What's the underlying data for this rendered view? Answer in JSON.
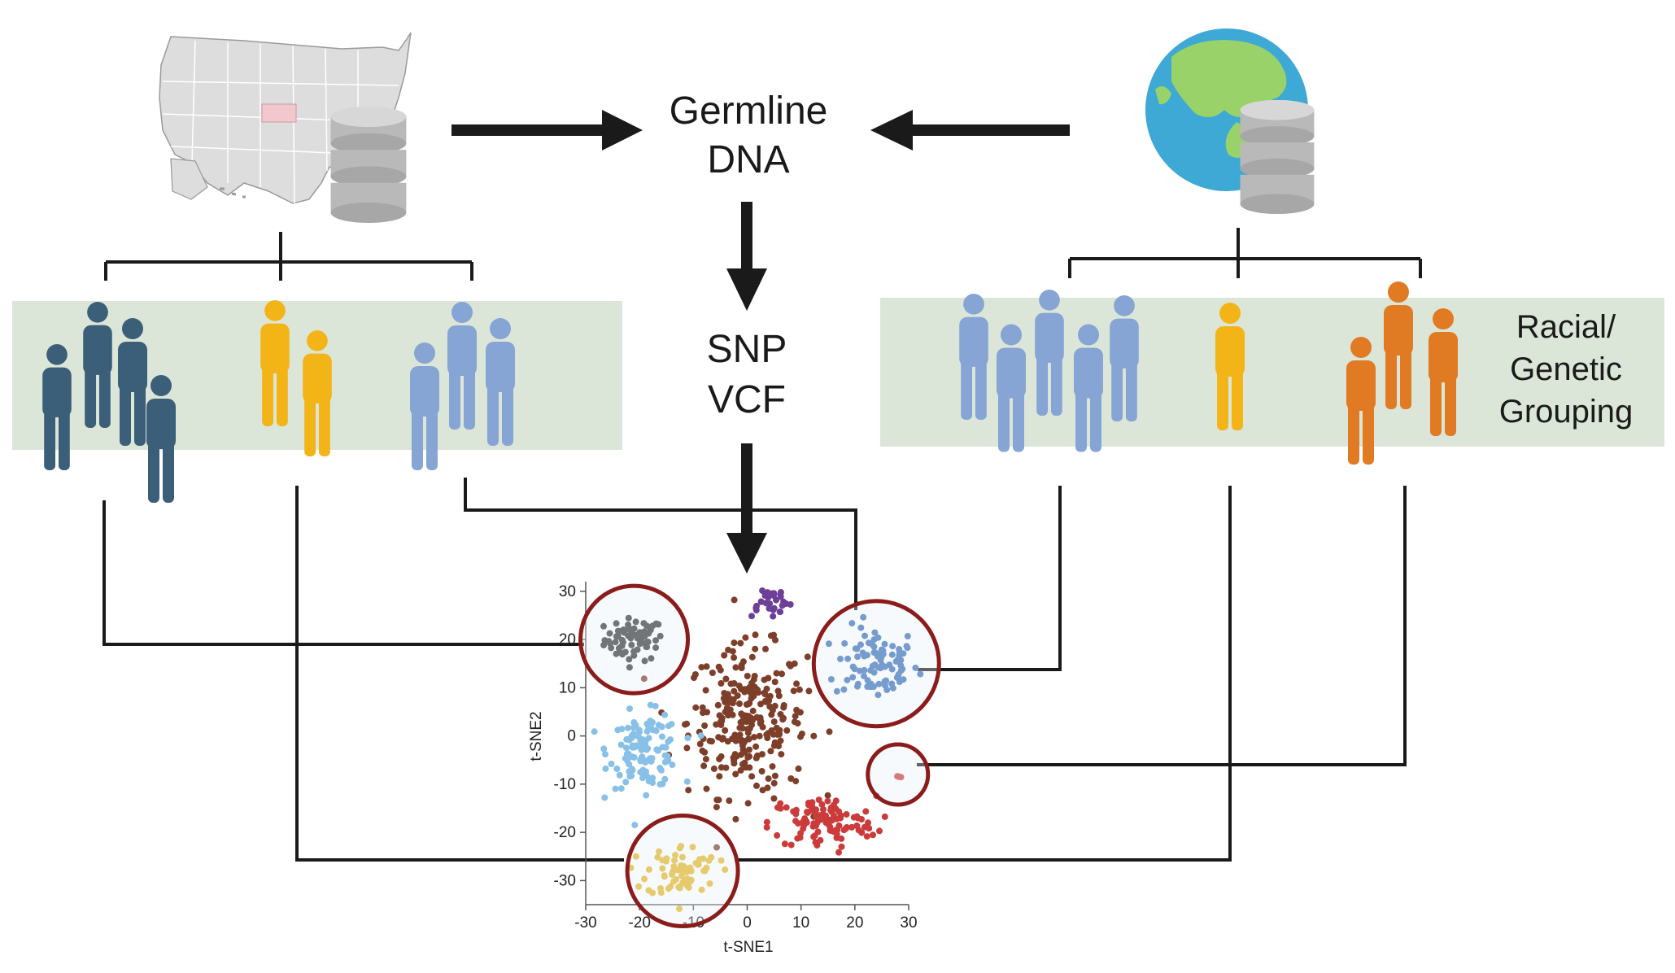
{
  "flow": {
    "source_label_line1": "Germline",
    "source_label_line2": "DNA",
    "format_label_line1": "SNP",
    "format_label_line2": "VCF"
  },
  "grouping_label": {
    "line1": "Racial/",
    "line2": "Genetic",
    "line3": "Grouping"
  },
  "colors": {
    "dark_teal": "#3b5f78",
    "yellow": "#f3b418",
    "light_blue": "#86a4d4",
    "orange": "#e07a23",
    "panel_bg": "#dbe6d8",
    "circle_ring": "#8b1c1c",
    "circle_fill": "#e9f0f8",
    "db_gray": "#b9b9b9",
    "ocean": "#3ea9d4",
    "land": "#9ad26a",
    "state_highlight": "#f2c8cf",
    "us_map": "#dddddd"
  },
  "left_dataset": {
    "map_icon": "us-map-icon",
    "database_icon": "database-icon",
    "groups": [
      "dark-teal-people-icon",
      "yellow-people-icon",
      "light-blue-people-icon"
    ]
  },
  "right_dataset": {
    "map_icon": "globe-icon",
    "database_icon": "database-icon",
    "groups": [
      "light-blue-people-icon",
      "yellow-person-icon",
      "orange-people-icon"
    ]
  },
  "chart_data": {
    "type": "scatter",
    "xlabel": "t-SNE1",
    "ylabel": "t-SNE2",
    "xlim": [
      -30,
      30
    ],
    "ylim": [
      -35,
      32
    ],
    "xticks": [
      "-30",
      "-20",
      "-10",
      "0",
      "10",
      "20",
      "30"
    ],
    "yticks": [
      "30",
      "20",
      "10",
      "0",
      "-10",
      "-20",
      "-30"
    ],
    "clusters": [
      {
        "color": "#333333",
        "center": [
          -21,
          20
        ],
        "spread": [
          5,
          4
        ],
        "count": 70
      },
      {
        "color": "#3a6fb7",
        "center": [
          24,
          15
        ],
        "spread": [
          7,
          7
        ],
        "count": 90
      },
      {
        "color": "#7d3f2a",
        "center": [
          0,
          3
        ],
        "spread": [
          10,
          14
        ],
        "count": 260
      },
      {
        "color": "#88c0e8",
        "center": [
          -19,
          -3
        ],
        "spread": [
          6,
          7
        ],
        "count": 120
      },
      {
        "color": "#cc3b3b",
        "center": [
          14,
          -18
        ],
        "spread": [
          9,
          5
        ],
        "count": 110
      },
      {
        "color": "#e5b624",
        "center": [
          -12,
          -28
        ],
        "spread": [
          6,
          5
        ],
        "count": 70
      },
      {
        "color": "#6e3f98",
        "center": [
          4,
          28
        ],
        "spread": [
          4,
          3
        ],
        "count": 30
      },
      {
        "color": "#cc3b3b",
        "center": [
          28,
          -8
        ],
        "spread": [
          1,
          1
        ],
        "count": 4
      }
    ],
    "highlight_circles": [
      {
        "name": "black-cluster",
        "center": [
          -21,
          20
        ]
      },
      {
        "name": "blue-cluster",
        "center": [
          24,
          15
        ]
      },
      {
        "name": "yellow-cluster",
        "center": [
          -12,
          -28
        ]
      },
      {
        "name": "red-small-cluster",
        "center": [
          28,
          -8
        ]
      }
    ]
  }
}
